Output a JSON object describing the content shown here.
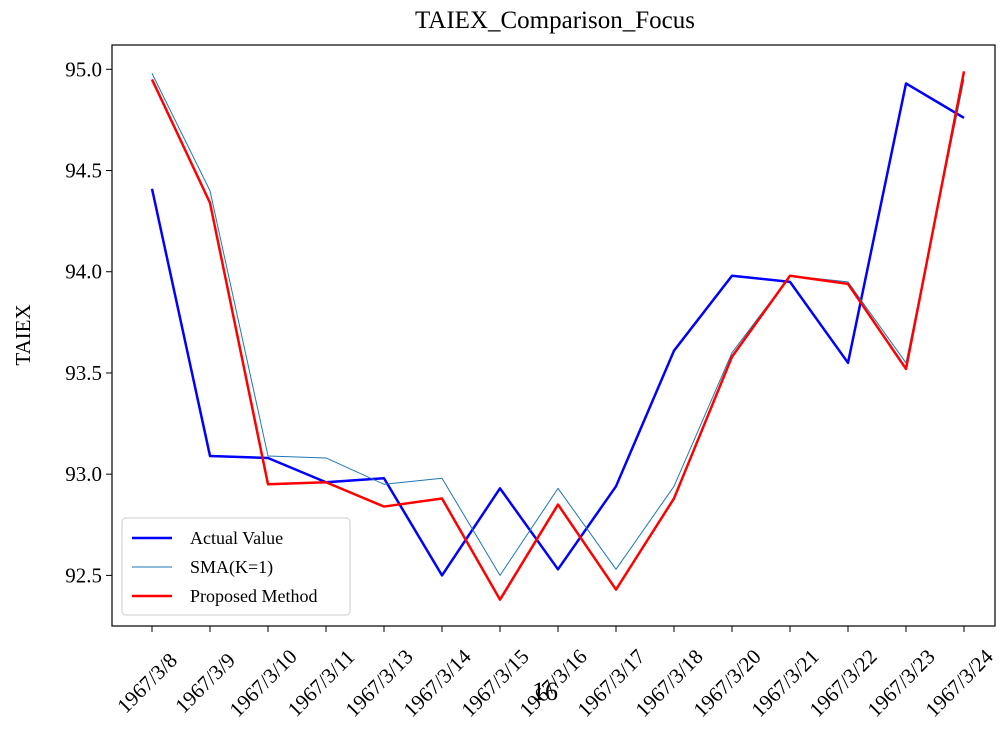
{
  "chart_data": {
    "type": "line",
    "title": "TAIEX_Comparison_Focus",
    "y_label": "TAIEX",
    "annotation": "16",
    "categories": [
      "1967/3/8",
      "1967/3/9",
      "1967/3/10",
      "1967/3/11",
      "1967/3/13",
      "1967/3/14",
      "1967/3/15",
      "1967/3/16",
      "1967/3/17",
      "1967/3/18",
      "1967/3/20",
      "1967/3/21",
      "1967/3/22",
      "1967/3/23",
      "1967/3/24"
    ],
    "series": [
      {
        "name": "Actual Value",
        "color": "#0000ff",
        "width": 2.5,
        "values": [
          94.41,
          93.09,
          93.08,
          92.96,
          92.98,
          92.5,
          92.93,
          92.53,
          92.94,
          93.61,
          93.98,
          93.95,
          93.55,
          94.93,
          94.76
        ]
      },
      {
        "name": "SMA(K=1)",
        "color": "#1f77b4",
        "width": 1,
        "values": [
          94.98,
          94.4,
          93.09,
          93.08,
          92.95,
          92.98,
          92.5,
          92.93,
          92.53,
          92.94,
          93.6,
          93.98,
          93.95,
          93.55,
          94.95
        ]
      },
      {
        "name": "Proposed Method",
        "color": "#ff0000",
        "width": 2.5,
        "values": [
          94.95,
          94.34,
          92.95,
          92.96,
          92.84,
          92.88,
          92.38,
          92.85,
          92.43,
          92.88,
          93.58,
          93.98,
          93.94,
          93.52,
          94.99
        ]
      }
    ],
    "ylim": [
      92.25,
      95.12
    ],
    "yticks": [
      92.5,
      {
        "value": 93.0,
        "label": "93.0"
      },
      93.5,
      {
        "value": 94.0,
        "label": "94.0"
      },
      94.5,
      {
        "value": 95.0,
        "label": "95.0"
      }
    ],
    "legend": "lower left"
  }
}
